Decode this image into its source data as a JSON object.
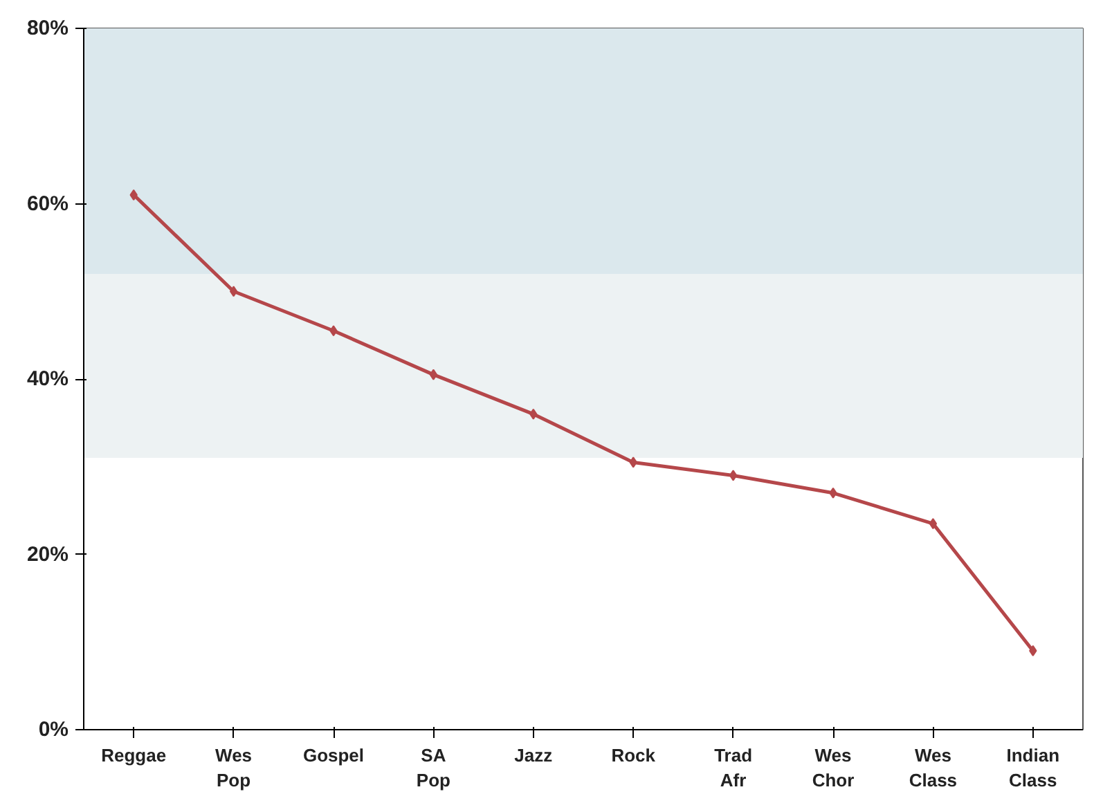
{
  "chart_data": {
    "type": "line",
    "categories": [
      "Reggae",
      "Wes\nPop",
      "Gospel",
      "SA\nPop",
      "Jazz",
      "Rock",
      "Trad\nAfr",
      "Wes\nChor",
      "Wes\nClass",
      "Indian\nClass"
    ],
    "series": [
      {
        "color": "#b5474a",
        "values": [
          61,
          50,
          45.5,
          40.5,
          36,
          30.5,
          29,
          27,
          23.5,
          9
        ]
      }
    ],
    "ylim": [
      0,
      80
    ],
    "yticks": [
      {
        "value": 0,
        "label": "0%"
      },
      {
        "value": 20,
        "label": "20%"
      },
      {
        "value": 40,
        "label": "40%"
      },
      {
        "value": 60,
        "label": "60%"
      },
      {
        "value": 80,
        "label": "80%"
      }
    ],
    "bands": [
      {
        "axis": "y",
        "from": 52,
        "to": 80,
        "color": "#dbe8ed"
      },
      {
        "axis": "y",
        "from": 31,
        "to": 52,
        "color": "#edf2f3"
      }
    ],
    "marker": "diamond",
    "line_style": "solid"
  }
}
